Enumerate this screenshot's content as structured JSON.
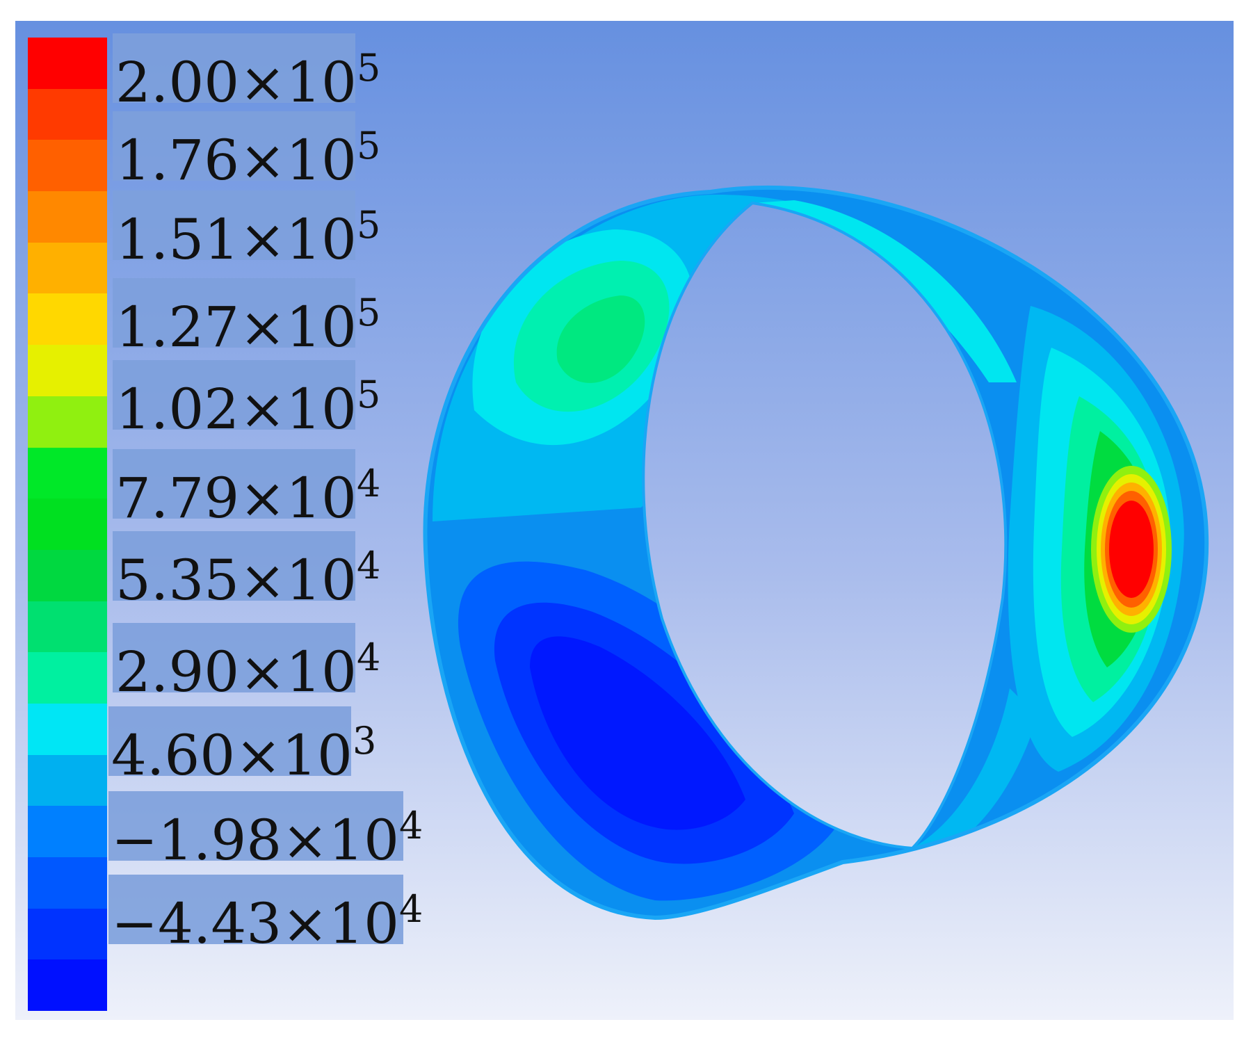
{
  "legend": {
    "bands": [
      "#0010ff",
      "#0033ff",
      "#0058ff",
      "#0080ff",
      "#00b0f0",
      "#00e6f5",
      "#00f0a0",
      "#00e070",
      "#00d840",
      "#00e020",
      "#00e828",
      "#90f010",
      "#e6f000",
      "#ffd800",
      "#ffb000",
      "#ff8800",
      "#ff6000",
      "#ff3a00",
      "#ff0000"
    ],
    "ticks": [
      {
        "mantissa": "2.00×10",
        "exp": "5"
      },
      {
        "mantissa": "1.76×10",
        "exp": "5"
      },
      {
        "mantissa": "1.51×10",
        "exp": "5"
      },
      {
        "mantissa": "1.27×10",
        "exp": "5"
      },
      {
        "mantissa": "1.02×10",
        "exp": "5"
      },
      {
        "mantissa": "7.79×10",
        "exp": "4"
      },
      {
        "mantissa": "5.35×10",
        "exp": "4"
      },
      {
        "mantissa": "2.90×10",
        "exp": "4"
      },
      {
        "mantissa": "4.60×10",
        "exp": "3"
      },
      {
        "mantissa": "−1.98×10",
        "exp": "4"
      },
      {
        "mantissa": "−4.43×10",
        "exp": "4"
      }
    ]
  },
  "colors": {
    "background_top": "#6690e0",
    "background_bottom": "#eef1fa",
    "ring_base": "#0a90f0"
  }
}
